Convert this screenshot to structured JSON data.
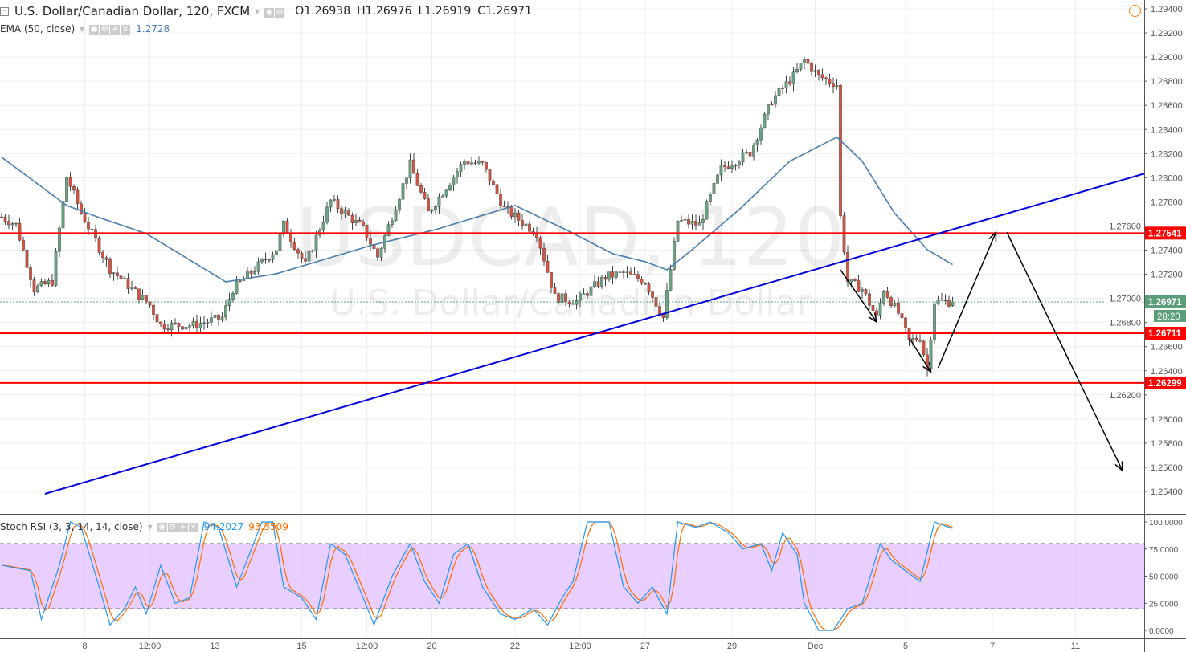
{
  "header": {
    "symbol_title": "U.S. Dollar/Canadian Dollar, 120, FXCM",
    "open": "O1.26938",
    "high": "H1.26976",
    "low": "L1.26919",
    "close": "C1.26971",
    "ema_label": "EMA (50, close)",
    "ema_value": "1.2728",
    "stoch_label": "Stoch RSI (3, 3, 14, 14, close)",
    "stoch_k": "94.2027",
    "stoch_d": "93.3509"
  },
  "watermark": {
    "symbol": "USDCAD, 120",
    "name": "U.S. Dollar/Canadian Dollar"
  },
  "chart_data": {
    "type": "candlestick",
    "ylim": [
      1.2532,
      1.2947
    ],
    "price_ticks": [
      "1.29400",
      "1.29200",
      "1.29000",
      "1.28800",
      "1.28600",
      "1.28400",
      "1.28200",
      "1.28000",
      "1.27800",
      "1.27600",
      "1.27400",
      "1.27200",
      "1.27000",
      "1.26800",
      "1.26600",
      "1.26400",
      "1.26200",
      "1.26000",
      "1.25800",
      "1.25600",
      "1.25400"
    ],
    "time_ticks": [
      [
        "8",
        23
      ],
      [
        "12:00",
        41
      ],
      [
        "13",
        59
      ],
      [
        "15",
        83
      ],
      [
        "12:00",
        101
      ],
      [
        "20",
        119
      ],
      [
        "22",
        142
      ],
      [
        "12:00",
        160
      ],
      [
        "27",
        178
      ],
      [
        "29",
        202
      ],
      [
        "Dec",
        225
      ],
      [
        "5",
        250
      ],
      [
        "7",
        274
      ],
      [
        "11",
        297
      ]
    ],
    "bars_visible": 316,
    "price_path": [
      [
        0,
        1.27676
      ],
      [
        4,
        1.2761
      ],
      [
        9,
        1.27077
      ],
      [
        14,
        1.2714
      ],
      [
        18,
        1.2801
      ],
      [
        22,
        1.2771
      ],
      [
        30,
        1.27244
      ],
      [
        41,
        1.26944
      ],
      [
        44,
        1.26778
      ],
      [
        53,
        1.26778
      ],
      [
        61,
        1.2684
      ],
      [
        64,
        1.27077
      ],
      [
        76,
        1.2741
      ],
      [
        78,
        1.2761
      ],
      [
        84,
        1.27277
      ],
      [
        91,
        1.27809
      ],
      [
        100,
        1.27577
      ],
      [
        104,
        1.27344
      ],
      [
        113,
        1.28109
      ],
      [
        118,
        1.2771
      ],
      [
        128,
        1.2814
      ],
      [
        133,
        1.28109
      ],
      [
        139,
        1.27743
      ],
      [
        148,
        1.27543
      ],
      [
        153,
        1.2701
      ],
      [
        159,
        1.26977
      ],
      [
        167,
        1.27177
      ],
      [
        172,
        1.2721
      ],
      [
        178,
        1.2714
      ],
      [
        183,
        1.2684
      ],
      [
        187,
        1.27643
      ],
      [
        193,
        1.2761
      ],
      [
        199,
        1.28076
      ],
      [
        207,
        1.2821
      ],
      [
        213,
        1.28642
      ],
      [
        219,
        1.28841
      ],
      [
        222,
        1.28974
      ],
      [
        226,
        1.28841
      ],
      [
        231,
        1.28774
      ],
      [
        232,
        1.27676
      ],
      [
        234,
        1.2714
      ],
      [
        238,
        1.27077
      ],
      [
        242,
        1.2684
      ],
      [
        244,
        1.27077
      ],
      [
        248,
        1.26877
      ],
      [
        251,
        1.26644
      ],
      [
        254,
        1.26677
      ],
      [
        256,
        1.26411
      ],
      [
        258,
        1.26977
      ],
      [
        263,
        1.26971
      ]
    ],
    "ema_path": [
      [
        0,
        1.2817
      ],
      [
        18,
        1.2777
      ],
      [
        27,
        1.2767
      ],
      [
        40,
        1.27537
      ],
      [
        62,
        1.27137
      ],
      [
        76,
        1.27204
      ],
      [
        102,
        1.27437
      ],
      [
        120,
        1.2757
      ],
      [
        142,
        1.2777
      ],
      [
        156,
        1.2757
      ],
      [
        169,
        1.2737
      ],
      [
        178,
        1.27304
      ],
      [
        184,
        1.27237
      ],
      [
        191,
        1.27404
      ],
      [
        204,
        1.27737
      ],
      [
        218,
        1.28137
      ],
      [
        231,
        1.28337
      ],
      [
        238,
        1.28137
      ],
      [
        247,
        1.27704
      ],
      [
        256,
        1.27404
      ],
      [
        263,
        1.2728
      ]
    ],
    "levels": [
      {
        "price": 1.27541,
        "label": "1.27541"
      },
      {
        "price": 1.26711,
        "label": "1.26711"
      },
      {
        "price": 1.26299,
        "label": "1.26299"
      }
    ],
    "last_price": {
      "price": 1.26971,
      "label": "1.26971",
      "countdown": "28:20"
    },
    "trendline": [
      [
        12,
        1.2538
      ],
      [
        316,
        1.28034
      ]
    ],
    "arrows": [
      [
        [
          232,
          1.27237
        ],
        [
          242,
          1.26804
        ]
      ],
      [
        [
          251,
          1.26671
        ],
        [
          257,
          1.26391
        ]
      ],
      [
        [
          259,
          1.26424
        ],
        [
          275,
          1.27548
        ]
      ],
      [
        [
          278,
          1.27548
        ],
        [
          310,
          1.25571
        ]
      ]
    ],
    "stoch": {
      "ticks": [
        "100.0000",
        "75.0000",
        "50.0000",
        "25.0000",
        "0.0000"
      ],
      "bands": [
        20,
        80
      ],
      "k_path": [
        [
          0,
          60
        ],
        [
          8,
          55
        ],
        [
          11,
          10
        ],
        [
          16,
          60
        ],
        [
          19,
          100
        ],
        [
          22,
          95
        ],
        [
          27,
          40
        ],
        [
          30,
          5
        ],
        [
          34,
          20
        ],
        [
          37,
          40
        ],
        [
          40,
          15
        ],
        [
          44,
          60
        ],
        [
          48,
          25
        ],
        [
          52,
          30
        ],
        [
          56,
          100
        ],
        [
          60,
          95
        ],
        [
          65,
          40
        ],
        [
          72,
          100
        ],
        [
          75,
          100
        ],
        [
          78,
          40
        ],
        [
          83,
          30
        ],
        [
          87,
          10
        ],
        [
          91,
          80
        ],
        [
          95,
          70
        ],
        [
          100,
          30
        ],
        [
          103,
          5
        ],
        [
          108,
          50
        ],
        [
          113,
          80
        ],
        [
          117,
          45
        ],
        [
          121,
          25
        ],
        [
          125,
          70
        ],
        [
          129,
          80
        ],
        [
          133,
          40
        ],
        [
          138,
          15
        ],
        [
          142,
          10
        ],
        [
          147,
          20
        ],
        [
          151,
          5
        ],
        [
          155,
          30
        ],
        [
          158,
          45
        ],
        [
          162,
          100
        ],
        [
          168,
          100
        ],
        [
          172,
          40
        ],
        [
          176,
          25
        ],
        [
          180,
          40
        ],
        [
          184,
          15
        ],
        [
          187,
          100
        ],
        [
          192,
          95
        ],
        [
          196,
          100
        ],
        [
          201,
          90
        ],
        [
          205,
          75
        ],
        [
          210,
          80
        ],
        [
          213,
          55
        ],
        [
          216,
          90
        ],
        [
          220,
          70
        ],
        [
          222,
          25
        ],
        [
          226,
          0
        ],
        [
          230,
          0
        ],
        [
          234,
          20
        ],
        [
          238,
          25
        ],
        [
          243,
          80
        ],
        [
          246,
          65
        ],
        [
          250,
          55
        ],
        [
          254,
          45
        ],
        [
          258,
          100
        ],
        [
          262,
          95
        ],
        [
          263,
          94
        ]
      ]
    },
    "colors": {
      "up": "#6ba583",
      "down": "#d75442",
      "ema": "#4a7dab",
      "level": "#ff0000",
      "trend": "#0000dd",
      "k": "#2196f3",
      "d": "#ff6d00",
      "band": "#e1bfff",
      "last": "#5a9e7a"
    }
  }
}
